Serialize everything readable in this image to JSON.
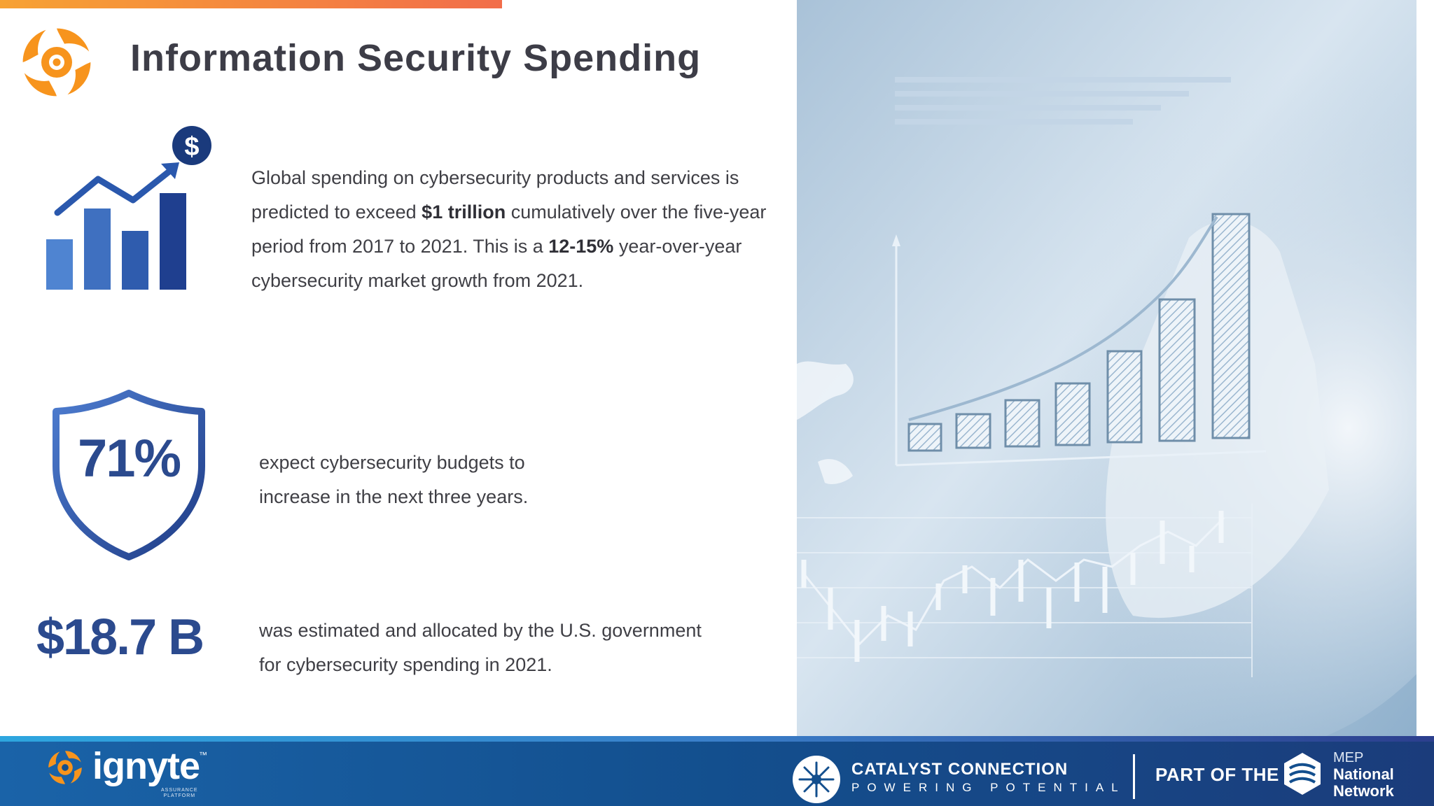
{
  "title": "Information Security Spending",
  "stats": {
    "para1": {
      "t1": "Global spending on cybersecurity products and services is predicted to exceed ",
      "b1": "$1 trillion",
      "t2": " cumulatively over the five-year period from 2017 to 2021. This is a ",
      "b2": "12-15%",
      "t3": " year-over-year cybersecurity market growth from 2021."
    },
    "dollar_symbol": "$",
    "shield_value": "71%",
    "para2_line1": "expect cybersecurity budgets to",
    "para2_line2": "increase in the next three years.",
    "big_value": "$18.7 B",
    "para3_line1": "was estimated and allocated by the U.S. government",
    "para3_line2": "for cybersecurity spending in 2021."
  },
  "footer": {
    "ignyte_name": "ignyte",
    "ignyte_tm": "™",
    "ignyte_sub1": "ASSURANCE",
    "ignyte_sub2": "PLATFORM",
    "catalyst_name": "CATALYST CONNECTION",
    "catalyst_tagline": "POWERING POTENTIAL",
    "part_of": "PART OF THE",
    "mep_line1": "MEP",
    "mep_line2": "National",
    "mep_line3": "Network"
  },
  "colors": {
    "accent_orange": "#f7941d",
    "heading": "#3d3d47",
    "stat_blue": "#2b4a8e",
    "footer_blue": "#134f8e"
  }
}
